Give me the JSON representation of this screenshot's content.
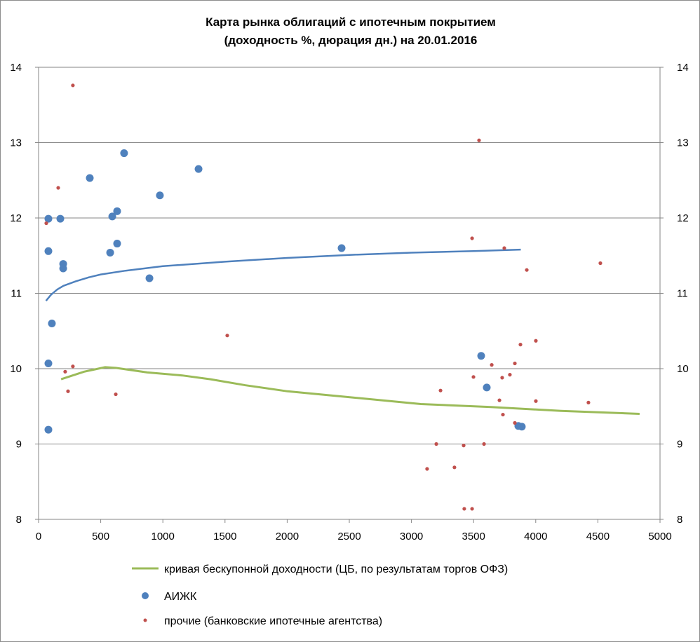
{
  "chart_data": {
    "type": "scatter",
    "title": [
      "Карта рынка облигаций с ипотечным покрытием",
      "(доходность %, дюрация дн.) на 20.01.2016"
    ],
    "xlabel": "",
    "ylabel": "",
    "xlim": [
      0,
      5000
    ],
    "ylim": [
      8,
      14
    ],
    "xticks": [
      0,
      500,
      1000,
      1500,
      2000,
      2500,
      3000,
      3500,
      4000,
      4500,
      5000
    ],
    "yticks": [
      8,
      9,
      10,
      11,
      12,
      13,
      14
    ],
    "grid": "horizontal",
    "secondary_y_axis": true,
    "legend_position": "bottom",
    "colors": {
      "curve": "#9bbb59",
      "aijk": "#4f81bd",
      "other": "#c0504d",
      "trend": "#4f81bd",
      "grid": "#868686"
    },
    "series": [
      {
        "name": "кривая бескупонной доходности (ЦБ, по результатам торгов ОФЗ)",
        "kind": "line",
        "points": [
          [
            181,
            9.86
          ],
          [
            367,
            9.96
          ],
          [
            536,
            10.02
          ],
          [
            621,
            10.01
          ],
          [
            875,
            9.95
          ],
          [
            1157,
            9.91
          ],
          [
            1383,
            9.86
          ],
          [
            1665,
            9.78
          ],
          [
            2003,
            9.7
          ],
          [
            2511,
            9.62
          ],
          [
            3076,
            9.53
          ],
          [
            3640,
            9.49
          ],
          [
            4204,
            9.44
          ],
          [
            4836,
            9.4
          ]
        ]
      },
      {
        "name": "АИЖК",
        "kind": "scatter-large",
        "points": [
          [
            79,
            11.99
          ],
          [
            175,
            11.99
          ],
          [
            79,
            11.56
          ],
          [
            198,
            11.39
          ],
          [
            198,
            11.33
          ],
          [
            107,
            10.6
          ],
          [
            79,
            10.07
          ],
          [
            79,
            9.19
          ],
          [
            412,
            12.53
          ],
          [
            688,
            12.86
          ],
          [
            593,
            12.02
          ],
          [
            632,
            12.09
          ],
          [
            576,
            11.54
          ],
          [
            632,
            11.66
          ],
          [
            892,
            11.2
          ],
          [
            976,
            12.3
          ],
          [
            1287,
            12.65
          ],
          [
            2438,
            11.6
          ],
          [
            3561,
            10.17
          ],
          [
            3606,
            9.75
          ],
          [
            3860,
            9.24
          ],
          [
            3888,
            9.23
          ]
        ]
      },
      {
        "name": "прочие (банковские ипотечные агентства)",
        "kind": "scatter-small",
        "points": [
          [
            62,
            11.93
          ],
          [
            158,
            12.4
          ],
          [
            276,
            13.76
          ],
          [
            214,
            9.96
          ],
          [
            276,
            10.03
          ],
          [
            237,
            9.7
          ],
          [
            621,
            9.66
          ],
          [
            1518,
            10.44
          ],
          [
            3544,
            13.03
          ],
          [
            3488,
            11.73
          ],
          [
            3747,
            11.6
          ],
          [
            3928,
            11.31
          ],
          [
            4520,
            11.4
          ],
          [
            3877,
            10.32
          ],
          [
            4001,
            10.37
          ],
          [
            3646,
            10.05
          ],
          [
            3832,
            10.07
          ],
          [
            3499,
            9.89
          ],
          [
            3730,
            9.88
          ],
          [
            3792,
            9.92
          ],
          [
            3234,
            9.71
          ],
          [
            3708,
            9.58
          ],
          [
            4001,
            9.57
          ],
          [
            4424,
            9.55
          ],
          [
            3736,
            9.39
          ],
          [
            3832,
            9.28
          ],
          [
            3200,
            9.0
          ],
          [
            3420,
            8.98
          ],
          [
            3584,
            9.0
          ],
          [
            3126,
            8.67
          ],
          [
            3346,
            8.69
          ],
          [
            3425,
            8.14
          ],
          [
            3488,
            8.14
          ]
        ]
      },
      {
        "name": "trend-aijk",
        "kind": "trendline",
        "points": [
          [
            60,
            10.9
          ],
          [
            100,
            10.98
          ],
          [
            150,
            11.05
          ],
          [
            200,
            11.1
          ],
          [
            300,
            11.16
          ],
          [
            400,
            11.21
          ],
          [
            500,
            11.25
          ],
          [
            700,
            11.3
          ],
          [
            1000,
            11.36
          ],
          [
            1500,
            11.42
          ],
          [
            2000,
            11.47
          ],
          [
            2500,
            11.51
          ],
          [
            3000,
            11.54
          ],
          [
            3500,
            11.56
          ],
          [
            3880,
            11.58
          ]
        ]
      }
    ]
  }
}
